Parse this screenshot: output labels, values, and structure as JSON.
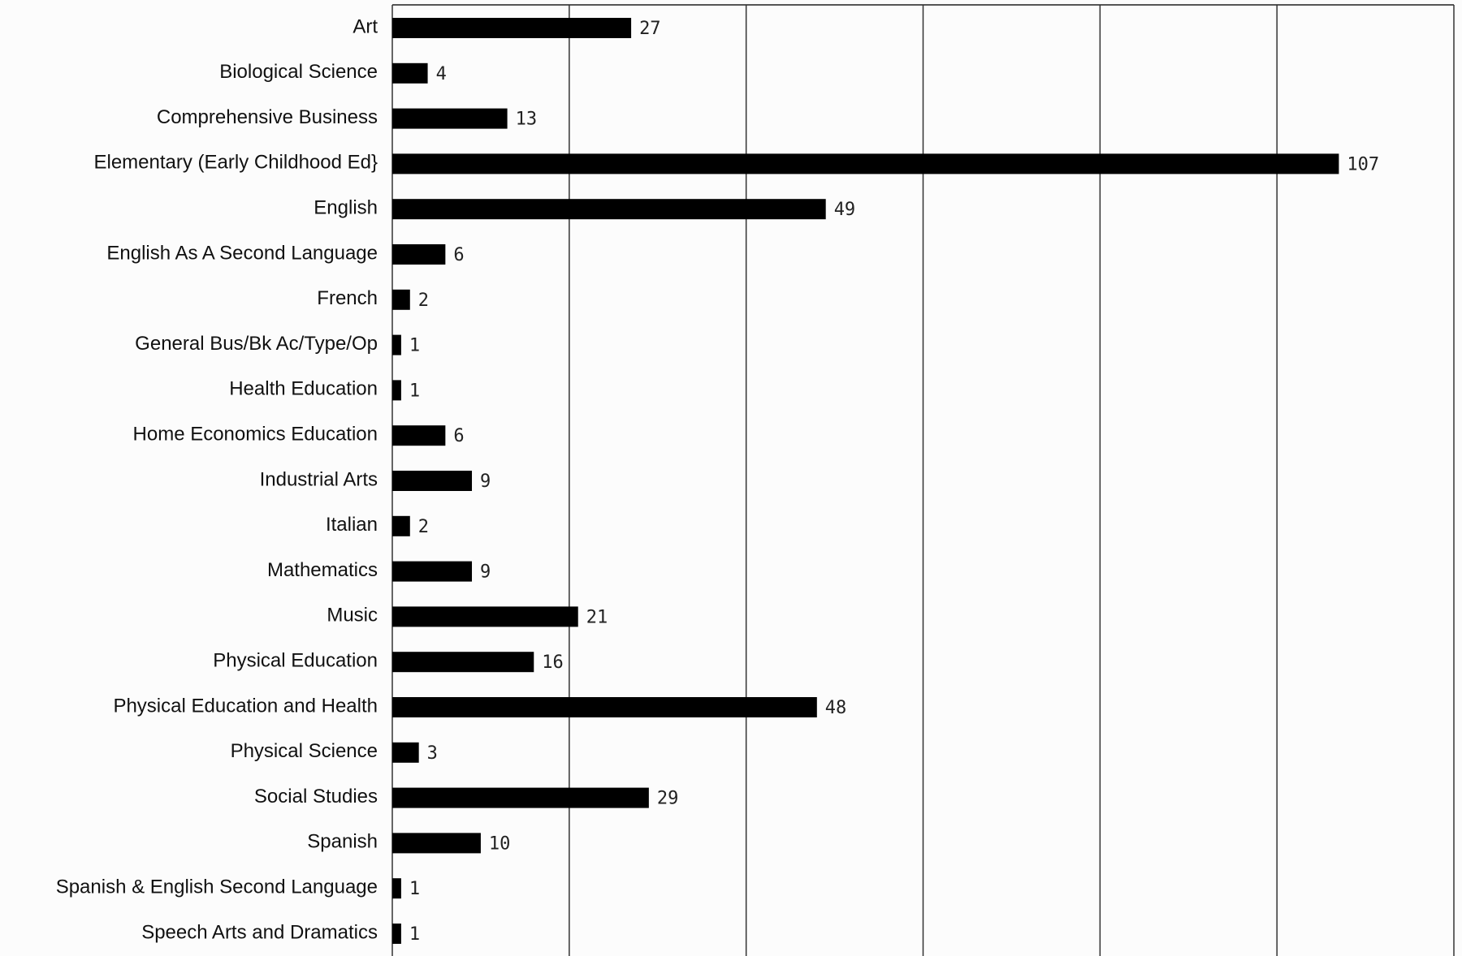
{
  "chart_data": {
    "type": "barh",
    "categories": [
      "Art",
      "Biological Science",
      "Comprehensive Business",
      "Elementary (Early Childhood Ed}",
      "English",
      "English As A Second Language",
      "French",
      "General Bus/Bk Ac/Type/Op",
      "Health Education",
      "Home Economics Education",
      "Industrial Arts",
      "Italian",
      "Mathematics",
      "Music",
      "Physical Education",
      "Physical Education and Health",
      "Physical Science",
      "Social Studies",
      "Spanish",
      "Spanish & English Second Language",
      "Speech Arts and Dramatics"
    ],
    "values": [
      27,
      4,
      13,
      107,
      49,
      6,
      2,
      1,
      1,
      6,
      9,
      2,
      9,
      21,
      16,
      48,
      3,
      29,
      10,
      1,
      1
    ],
    "color": "#000000",
    "xlim": [
      0,
      120
    ],
    "gridlines": [
      0,
      20,
      40,
      60,
      80,
      100,
      120
    ]
  }
}
